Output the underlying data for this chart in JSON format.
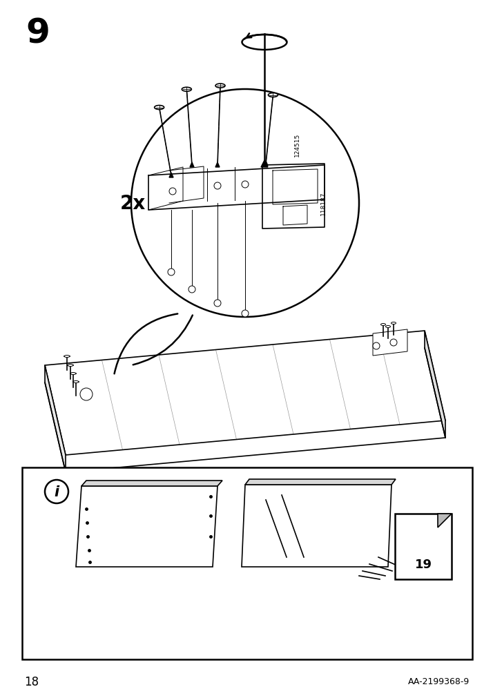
{
  "bg_color": "#ffffff",
  "step_number": "9",
  "multiplier": "2x",
  "part_id_1": "124515",
  "part_id_2": "118187",
  "page_number": "18",
  "doc_id": "AA-2199368-9",
  "info_box_page": "19",
  "fig_width": 7.14,
  "fig_height": 10.12
}
